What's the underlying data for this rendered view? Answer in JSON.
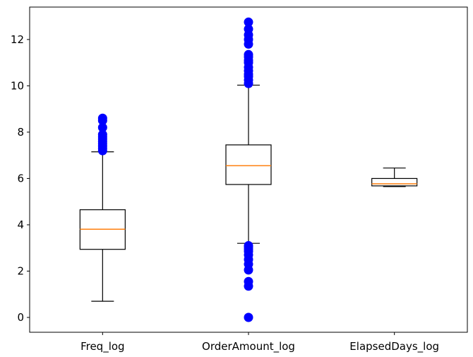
{
  "chart_data": {
    "type": "box",
    "categories": [
      "Freq_log",
      "OrderAmount_log",
      "ElapsedDays_log"
    ],
    "boxes": [
      {
        "name": "Freq_log",
        "whisker_low": 0.7,
        "q1": 2.94,
        "median": 3.81,
        "q3": 4.65,
        "whisker_high": 7.15,
        "outliers": [
          7.2,
          7.3,
          7.4,
          7.5,
          7.6,
          7.7,
          7.8,
          7.9,
          8.2,
          8.5,
          8.6
        ]
      },
      {
        "name": "OrderAmount_log",
        "whisker_low": 3.2,
        "q1": 5.74,
        "median": 6.55,
        "q3": 7.45,
        "whisker_high": 10.03,
        "outliers": [
          0.0,
          1.35,
          1.55,
          2.05,
          2.3,
          2.5,
          2.7,
          2.85,
          2.95,
          3.05,
          3.1,
          10.1,
          10.25,
          10.4,
          10.5,
          10.65,
          10.8,
          11.0,
          11.1,
          11.25,
          11.35,
          11.8,
          12.0,
          12.2,
          12.45,
          12.75
        ]
      },
      {
        "name": "ElapsedDays_log",
        "whisker_low": 5.65,
        "q1": 5.68,
        "median": 5.77,
        "q3": 6.0,
        "whisker_high": 6.45,
        "outliers": []
      }
    ],
    "yticks": [
      0,
      2,
      4,
      6,
      8,
      10,
      12
    ],
    "ylim": [
      -0.64,
      13.4
    ],
    "grid": false,
    "box_color": "#000000",
    "median_color": "#ff7f0e",
    "outlier_color": "#0000ff"
  }
}
